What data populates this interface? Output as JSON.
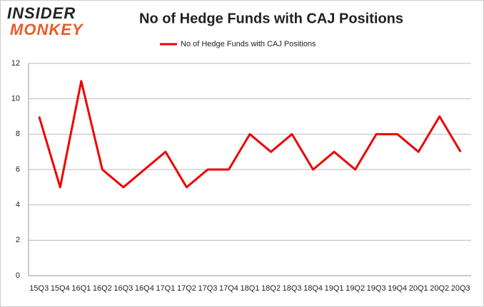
{
  "logo": [
    "INSIDER",
    "MONKEY"
  ],
  "chart_data": {
    "type": "line",
    "title": "No of Hedge Funds with CAJ Positions",
    "categories": [
      "15Q3",
      "15Q4",
      "16Q1",
      "16Q2",
      "16Q3",
      "16Q4",
      "17Q1",
      "17Q2",
      "17Q3",
      "17Q4",
      "18Q1",
      "18Q2",
      "18Q3",
      "18Q4",
      "19Q1",
      "19Q2",
      "19Q3",
      "19Q4",
      "20Q1",
      "20Q2",
      "20Q3"
    ],
    "series": [
      {
        "name": "No of Hedge Funds with CAJ Positions",
        "color": "#ee0000",
        "values": [
          9,
          5,
          11,
          6,
          5,
          6,
          7,
          5,
          6,
          6,
          8,
          7,
          8,
          6,
          7,
          6,
          8,
          8,
          7,
          9,
          7
        ]
      }
    ],
    "ylim": [
      0,
      12
    ],
    "yticks": [
      0,
      2,
      4,
      6,
      8,
      10,
      12
    ],
    "grid": true,
    "legend": "top"
  }
}
